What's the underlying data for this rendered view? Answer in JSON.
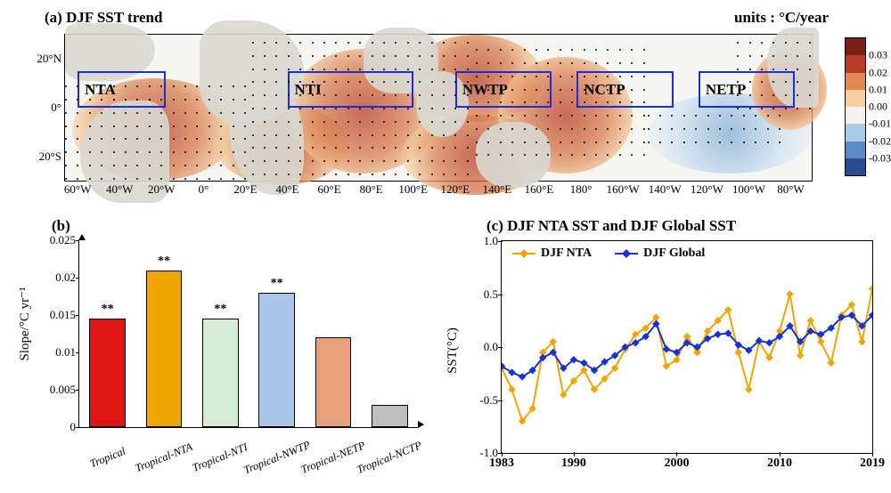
{
  "panel_a": {
    "title_left": "(a) DJF SST trend",
    "title_right": "units : °C/year",
    "y_ticks": [
      {
        "label": "20°N",
        "lat": 20
      },
      {
        "label": "0°",
        "lat": 0
      },
      {
        "label": "20°S",
        "lat": -20
      }
    ],
    "lat_range": [
      -30,
      30
    ],
    "x_ticks": [
      {
        "label": "60°W",
        "lon": -60
      },
      {
        "label": "40°W",
        "lon": -40
      },
      {
        "label": "20°W",
        "lon": -20
      },
      {
        "label": "0°",
        "lon": 0
      },
      {
        "label": "20°E",
        "lon": 20
      },
      {
        "label": "40°E",
        "lon": 40
      },
      {
        "label": "60°E",
        "lon": 60
      },
      {
        "label": "80°E",
        "lon": 80
      },
      {
        "label": "100°E",
        "lon": 100
      },
      {
        "label": "120°E",
        "lon": 120
      },
      {
        "label": "140°E",
        "lon": 140
      },
      {
        "label": "160°E",
        "lon": 160
      },
      {
        "label": "180°",
        "lon": 180
      },
      {
        "label": "160°W",
        "lon": 200
      },
      {
        "label": "140°W",
        "lon": 220
      },
      {
        "label": "120°W",
        "lon": 240
      },
      {
        "label": "100°W",
        "lon": 260
      },
      {
        "label": "80°W",
        "lon": 280
      }
    ],
    "lon_range": [
      -66,
      290
    ],
    "regions": [
      {
        "label": "NTA",
        "lon": [
          -60,
          -18
        ],
        "lat": [
          0,
          15
        ]
      },
      {
        "label": "NTI",
        "lon": [
          40,
          100
        ],
        "lat": [
          0,
          15
        ]
      },
      {
        "label": "NWTP",
        "lon": [
          120,
          166
        ],
        "lat": [
          0,
          15
        ]
      },
      {
        "label": "NCTP",
        "lon": [
          178,
          224
        ],
        "lat": [
          0,
          15
        ]
      },
      {
        "label": "NETP",
        "lon": [
          236,
          282
        ],
        "lat": [
          0,
          15
        ]
      }
    ],
    "colorbar": {
      "levels": [
        -0.03,
        -0.02,
        -0.01,
        0.0,
        0.01,
        0.02,
        0.03
      ],
      "colors": [
        "#2a4b8d",
        "#5a8bc4",
        "#a8cce5",
        "#f2f2f0",
        "#f4cfa0",
        "#e08a4f",
        "#b73c26",
        "#7a1f14"
      ]
    },
    "region_border_color": "#1a2fd1"
  },
  "panel_b": {
    "title": "(b)",
    "type": "bar",
    "ylabel": "Slope/°C yr⁻¹",
    "ylim": [
      0,
      0.025
    ],
    "ytick_step": 0.005,
    "yticks": [
      0,
      0.005,
      0.01,
      0.015,
      0.02,
      0.025
    ],
    "bar_width": 0.64,
    "categories": [
      "Tropical",
      "Tropical-NTA",
      "Tropical-NTI",
      "Tropical-NWTP",
      "Tropical-NETP",
      "Tropical-NCTP"
    ],
    "values": [
      0.0145,
      0.021,
      0.0145,
      0.018,
      0.012,
      0.003
    ],
    "colors": [
      "#e11313",
      "#f1a500",
      "#d7ecd4",
      "#a9c5e8",
      "#e7a079",
      "#bfbfbf"
    ],
    "sig": [
      "**",
      "**",
      "**",
      "**",
      "",
      ""
    ],
    "border_color": "#000000",
    "label_fontsize": 13
  },
  "panel_c": {
    "title": "(c) DJF NTA SST and  DJF Global SST",
    "type": "line",
    "ylabel": "SST(°C)",
    "ylim": [
      -1.0,
      1.0
    ],
    "ytick_step": 0.5,
    "yticks": [
      -1.0,
      -0.5,
      0.0,
      0.5,
      1.0
    ],
    "xlim": [
      1983,
      2019
    ],
    "xticks": [
      1983,
      1990,
      2000,
      2010,
      2019
    ],
    "legend": [
      {
        "label": "DJF NTA",
        "color": "#f1a500"
      },
      {
        "label": "DJF Global",
        "color": "#1731d4"
      }
    ],
    "marker": "diamond",
    "marker_size": 6,
    "line_width": 2,
    "series": {
      "DJF_NTA": {
        "color": "#f1a500",
        "y": [
          -0.2,
          -0.4,
          -0.7,
          -0.58,
          -0.05,
          0.05,
          -0.45,
          -0.32,
          -0.22,
          -0.4,
          -0.3,
          -0.2,
          -0.02,
          0.12,
          0.18,
          0.28,
          -0.18,
          -0.12,
          0.1,
          -0.05,
          0.15,
          0.25,
          0.35,
          -0.05,
          -0.4,
          0.05,
          -0.1,
          0.15,
          0.5,
          -0.08,
          0.25,
          0.05,
          -0.15,
          0.3,
          0.4,
          0.05,
          0.55
        ]
      },
      "DJF_Global": {
        "color": "#1731d4",
        "y": [
          -0.18,
          -0.24,
          -0.28,
          -0.22,
          -0.1,
          -0.05,
          -0.2,
          -0.12,
          -0.15,
          -0.22,
          -0.14,
          -0.08,
          0.0,
          0.04,
          0.1,
          0.22,
          -0.02,
          -0.05,
          0.04,
          0.0,
          0.08,
          0.12,
          0.13,
          0.02,
          -0.03,
          0.06,
          0.04,
          0.1,
          0.2,
          0.05,
          0.15,
          0.12,
          0.18,
          0.28,
          0.3,
          0.2,
          0.3
        ]
      }
    },
    "years": [
      1983,
      1984,
      1985,
      1986,
      1987,
      1988,
      1989,
      1990,
      1991,
      1992,
      1993,
      1994,
      1995,
      1996,
      1997,
      1998,
      1999,
      2000,
      2001,
      2002,
      2003,
      2004,
      2005,
      2006,
      2007,
      2008,
      2009,
      2010,
      2011,
      2012,
      2013,
      2014,
      2015,
      2016,
      2017,
      2018,
      2019
    ]
  }
}
